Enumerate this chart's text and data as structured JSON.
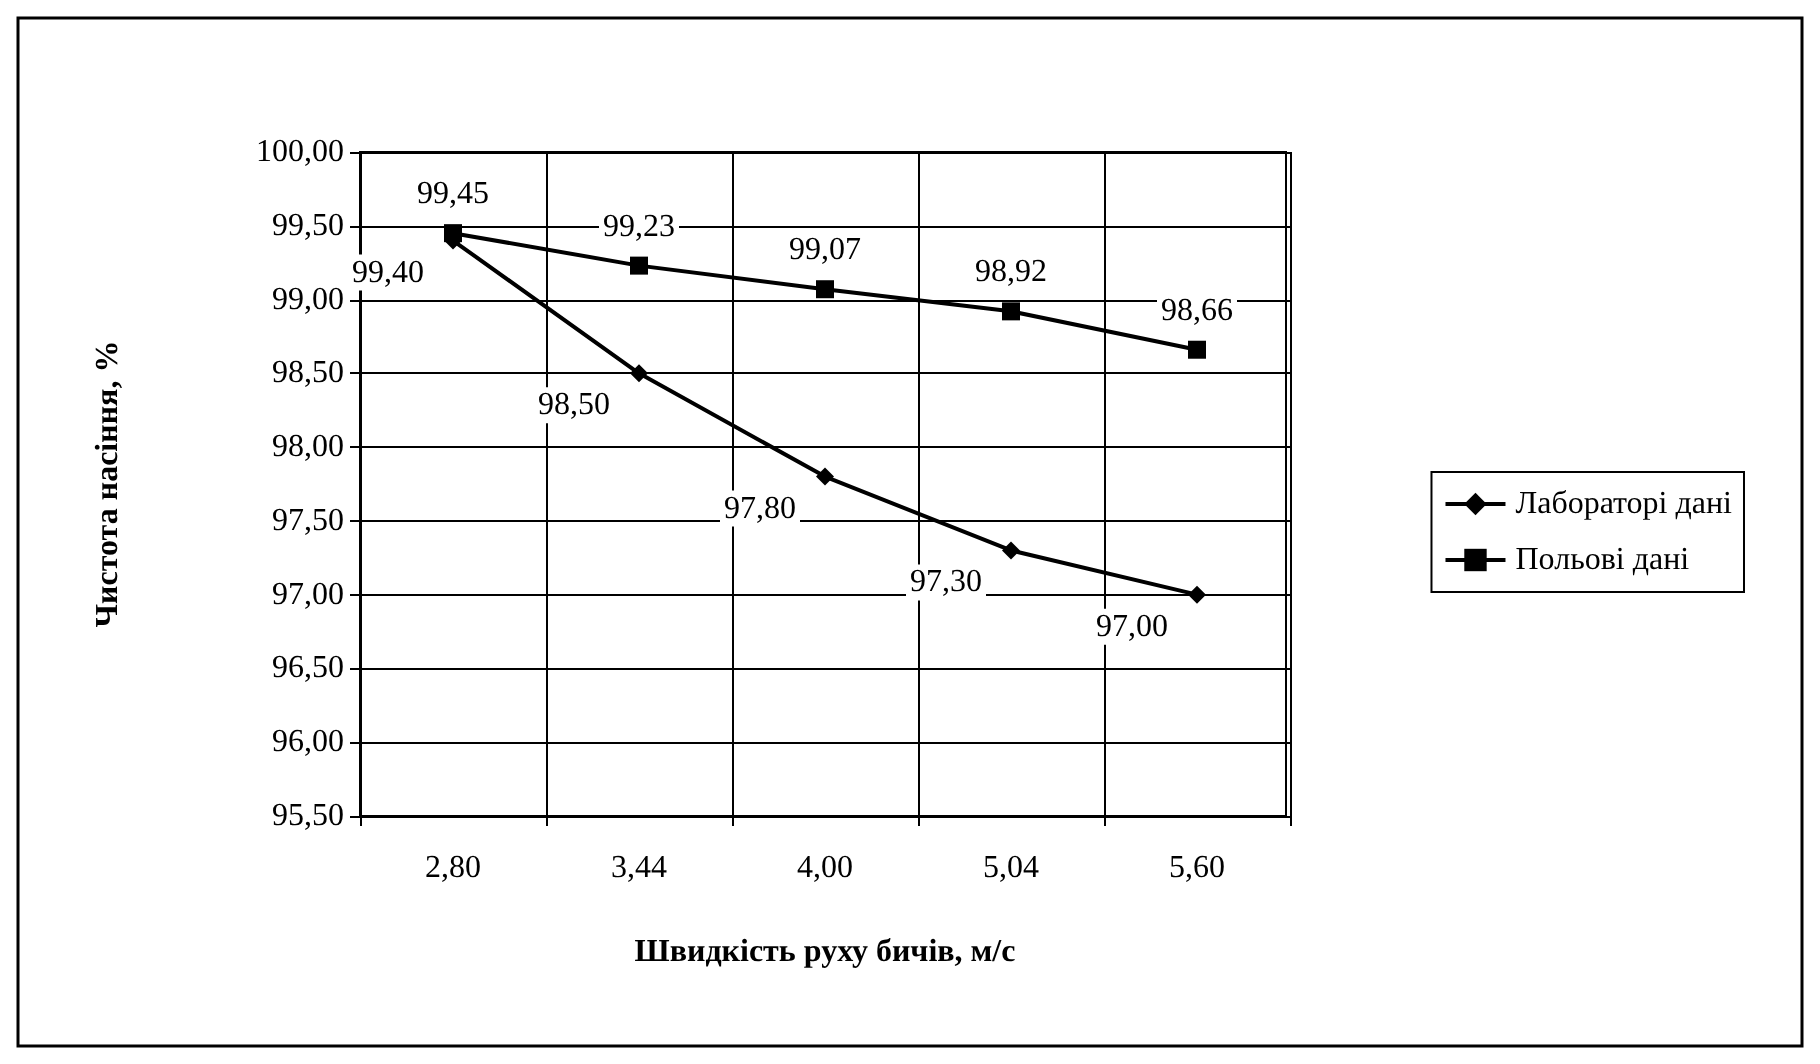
{
  "chart_data": {
    "type": "line",
    "xlabel": "Швидкість руху бичів, м/с",
    "ylabel": "Чистота насіння, %",
    "categories": [
      "2,80",
      "3,44",
      "4,00",
      "5,04",
      "5,60"
    ],
    "series": [
      {
        "name": "Лабораторі дані",
        "color": "#000000",
        "marker": "diamond",
        "values": [
          99.4,
          98.5,
          97.8,
          97.3,
          97.0
        ],
        "value_labels": [
          "99,40",
          "98,50",
          "97,80",
          "97,30",
          "97,00"
        ]
      },
      {
        "name": "Польові дані",
        "color": "#000000",
        "marker": "square",
        "values": [
          99.45,
          99.23,
          99.07,
          98.92,
          98.66
        ],
        "value_labels": [
          "99,45",
          "99,23",
          "99,07",
          "98,92",
          "98,66"
        ]
      }
    ],
    "ylim": [
      95.5,
      100
    ],
    "yticks": [
      {
        "value": 95.5,
        "label": "95,50"
      },
      {
        "value": 96,
        "label": "96,00"
      },
      {
        "value": 96.5,
        "label": "96,50"
      },
      {
        "value": 97,
        "label": "97,00"
      },
      {
        "value": 97.5,
        "label": "97,50"
      },
      {
        "value": 98,
        "label": "98,00"
      },
      {
        "value": 98.5,
        "label": "98,50"
      },
      {
        "value": 99,
        "label": "99,00"
      },
      {
        "value": 99.5,
        "label": "99,50"
      },
      {
        "value": 100,
        "label": "100,00"
      }
    ],
    "grid": true,
    "legend": "right",
    "line_style": "solid"
  }
}
